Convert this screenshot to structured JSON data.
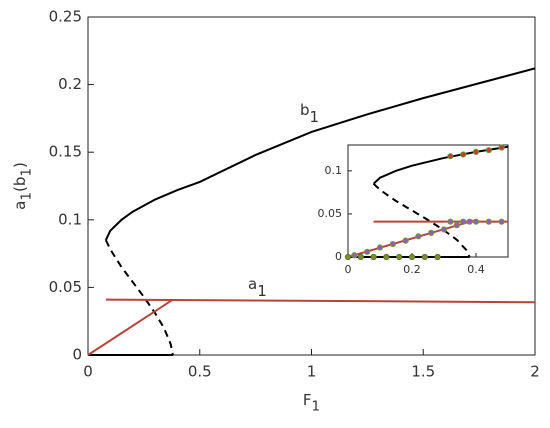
{
  "chart_data": [
    {
      "type": "line",
      "xlabel": [
        {
          "text": "F"
        },
        {
          "text": "1",
          "sub": true
        }
      ],
      "ylabel": [
        {
          "text": "a"
        },
        {
          "text": "1",
          "sub": true
        },
        {
          "text": "(b"
        },
        {
          "text": "1",
          "sub": true
        },
        {
          "text": ")"
        }
      ],
      "annotations": [
        [
          {
            "text": "b"
          },
          {
            "text": "1",
            "sub": true
          }
        ],
        [
          {
            "text": "a"
          },
          {
            "text": "1",
            "sub": true
          }
        ]
      ],
      "xlim": [
        0,
        2
      ],
      "ylim": [
        0,
        0.25
      ],
      "xticks": [
        0,
        0.5,
        1,
        1.5,
        2
      ],
      "yticks": [
        0,
        0.05,
        0.1,
        0.15,
        0.2,
        0.25
      ],
      "series": [
        {
          "color": "#000000",
          "dash": false,
          "x": [
            0.08,
            0.1,
            0.15,
            0.2,
            0.3,
            0.4,
            0.5,
            0.75,
            1,
            1.25,
            1.5,
            1.75,
            2
          ],
          "values": [
            0.085,
            0.092,
            0.1,
            0.106,
            0.115,
            0.122,
            0.128,
            0.148,
            0.165,
            0.178,
            0.19,
            0.201,
            0.212
          ]
        },
        {
          "color": "#000000",
          "dash": true,
          "x": [
            0.08,
            0.1,
            0.15,
            0.2,
            0.25,
            0.3,
            0.34,
            0.37,
            0.38
          ],
          "values": [
            0.085,
            0.078,
            0.065,
            0.054,
            0.043,
            0.031,
            0.02,
            0.008,
            0
          ]
        },
        {
          "color": "#000000",
          "dash": false,
          "x": [
            0,
            0.38
          ],
          "values": [
            0,
            0
          ]
        },
        {
          "color": "#b5453a",
          "dash": false,
          "x": [
            0.08,
            2
          ],
          "values": [
            0.041,
            0.039
          ]
        },
        {
          "color": "#b5453a",
          "dash": false,
          "x": [
            0,
            0.38
          ],
          "values": [
            0,
            0.041
          ]
        }
      ]
    },
    {
      "type": "line",
      "xlim": [
        0,
        0.5
      ],
      "ylim": [
        0,
        0.13
      ],
      "xticks": [
        0,
        0.2,
        0.4
      ],
      "yticks": [
        0,
        0.05,
        0.1
      ],
      "series": [
        {
          "color": "#000000",
          "dash": false,
          "x": [
            0.08,
            0.1,
            0.15,
            0.2,
            0.3,
            0.4,
            0.5
          ],
          "values": [
            0.085,
            0.092,
            0.1,
            0.106,
            0.115,
            0.122,
            0.128
          ]
        },
        {
          "color": "#000000",
          "dash": true,
          "x": [
            0.08,
            0.1,
            0.15,
            0.2,
            0.25,
            0.3,
            0.34,
            0.37,
            0.38
          ],
          "values": [
            0.085,
            0.078,
            0.065,
            0.054,
            0.043,
            0.031,
            0.02,
            0.008,
            0
          ]
        },
        {
          "color": "#000000",
          "dash": false,
          "x": [
            0,
            0.38
          ],
          "values": [
            0,
            0
          ]
        },
        {
          "color": "#b5453a",
          "dash": false,
          "x": [
            0.08,
            0.5
          ],
          "values": [
            0.041,
            0.041
          ]
        },
        {
          "color": "#b5453a",
          "dash": false,
          "x": [
            0,
            0.4
          ],
          "values": [
            0,
            0.043
          ]
        },
        {
          "color": "#9b59b6",
          "edgecolor": "#6a9a3a",
          "markers": true,
          "x": [
            0.02,
            0.06,
            0.1,
            0.14,
            0.18,
            0.22,
            0.26,
            0.3,
            0.34,
            0.38
          ],
          "values": [
            0.002,
            0.006,
            0.011,
            0.015,
            0.019,
            0.024,
            0.028,
            0.032,
            0.037,
            0.041
          ]
        },
        {
          "color": "#9b59b6",
          "edgecolor": "#6a9a3a",
          "markers": true,
          "x": [
            0.32,
            0.36,
            0.4,
            0.44,
            0.48
          ],
          "values": [
            0.041,
            0.041,
            0.041,
            0.041,
            0.041
          ]
        },
        {
          "color": "#c0392b",
          "edgecolor": "#6a9a3a",
          "markers": true,
          "x": [
            0.32,
            0.36,
            0.4,
            0.44,
            0.48
          ],
          "values": [
            0.117,
            0.119,
            0.122,
            0.124,
            0.127
          ]
        },
        {
          "color": "#8a8a2a",
          "edgecolor": "#4a7a2a",
          "markers": true,
          "x": [
            0,
            0.04,
            0.08,
            0.12,
            0.16,
            0.2,
            0.24,
            0.28
          ],
          "values": [
            0,
            0,
            0,
            0,
            0,
            0,
            0,
            0
          ]
        }
      ]
    }
  ]
}
